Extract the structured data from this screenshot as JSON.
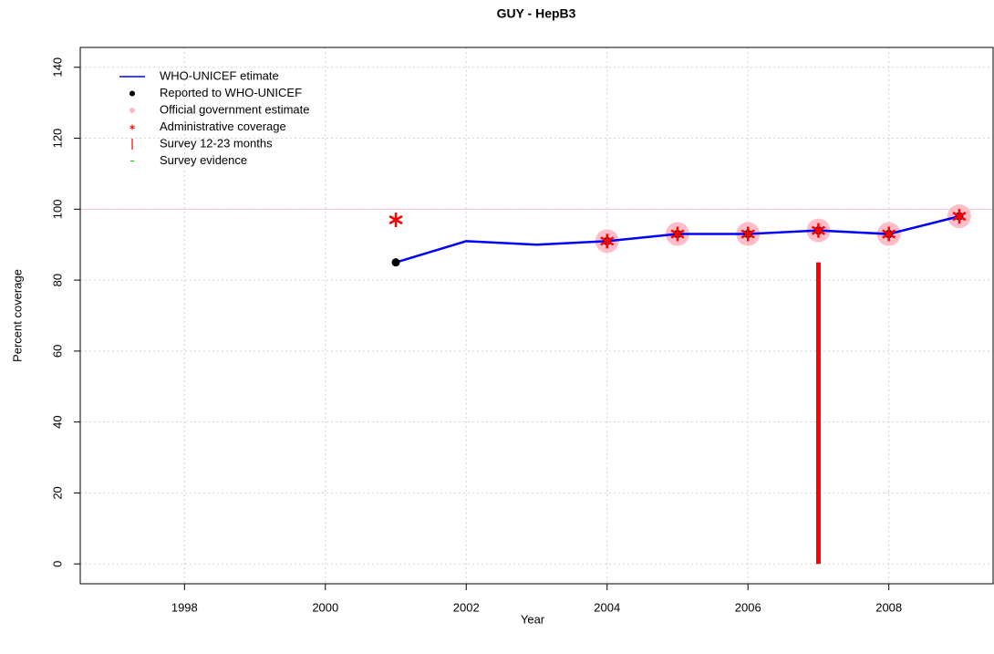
{
  "chart_data": {
    "type": "line",
    "title": "GUY  -  HepB3",
    "xlabel": "Year",
    "ylabel": "Percent coverage",
    "x": [
      2001,
      2002,
      2003,
      2004,
      2005,
      2006,
      2007,
      2008,
      2009
    ],
    "series": [
      {
        "name": "WHO-UNICEF etimate",
        "color": "#0000ff",
        "style": "line",
        "values": [
          85,
          91,
          90,
          91,
          93,
          93,
          94,
          93,
          98
        ]
      },
      {
        "name": "Reported to WHO-UNICEF",
        "color": "#000000",
        "style": "dot",
        "values": [
          85,
          null,
          null,
          91,
          93,
          93,
          94,
          93,
          98
        ]
      },
      {
        "name": "Official government estimate",
        "color": "#ffb6c1",
        "style": "circle",
        "values": [
          null,
          null,
          null,
          91,
          93,
          93,
          94,
          93,
          98
        ]
      },
      {
        "name": "Administrative coverage",
        "color": "#ff0000",
        "style": "star",
        "values": [
          97,
          null,
          null,
          91,
          93,
          93,
          94,
          93,
          98
        ]
      },
      {
        "name": "Survey 12-23 months",
        "color": "#ff0000",
        "style": "spike",
        "values": [
          null,
          null,
          null,
          null,
          null,
          null,
          85,
          null,
          null
        ]
      },
      {
        "name": "Survey evidence",
        "color": "#00cc00",
        "style": "dash",
        "values": [
          null,
          null,
          null,
          null,
          null,
          null,
          null,
          null,
          null
        ]
      }
    ],
    "xlim": [
      1996.52,
      2009.48
    ],
    "ylim": [
      -5.6,
      145.6
    ],
    "xticks": [
      1998,
      2000,
      2002,
      2004,
      2006,
      2008
    ],
    "yticks": [
      0,
      20,
      40,
      60,
      80,
      100,
      120,
      140
    ],
    "ref_line": 100,
    "ref_color": "#ffc0cb",
    "grid": true,
    "legend": "top-left"
  }
}
